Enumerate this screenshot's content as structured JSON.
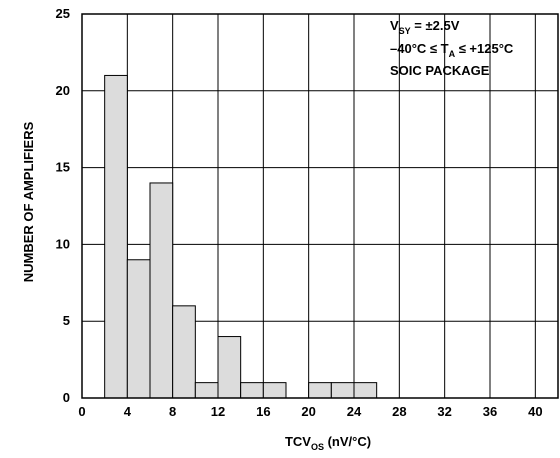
{
  "chart_data": {
    "type": "bar",
    "xlabel": {
      "main": "TCV",
      "sub": "OS",
      "rest": " (nV/°C)"
    },
    "ylabel": "NUMBER OF AMPLIFIERS",
    "xlim": [
      0,
      42
    ],
    "ylim": [
      0,
      25
    ],
    "x_ticks": [
      0,
      4,
      8,
      12,
      16,
      20,
      24,
      28,
      32,
      36,
      40
    ],
    "y_ticks": [
      0,
      5,
      10,
      15,
      20,
      25
    ],
    "bin_width": 2,
    "bins": [
      {
        "x": 2,
        "value": 21
      },
      {
        "x": 4,
        "value": 9
      },
      {
        "x": 6,
        "value": 14
      },
      {
        "x": 8,
        "value": 6
      },
      {
        "x": 10,
        "value": 1
      },
      {
        "x": 12,
        "value": 4
      },
      {
        "x": 14,
        "value": 1
      },
      {
        "x": 16,
        "value": 1
      },
      {
        "x": 20,
        "value": 1
      },
      {
        "x": 22,
        "value": 1
      },
      {
        "x": 24,
        "value": 1
      }
    ],
    "annotations": {
      "line1": {
        "main": "V",
        "sub": "SY",
        "rest": " = ±2.5V"
      },
      "line2": {
        "pre": "–40°C ≤ T",
        "sub": "A",
        "rest": " ≤ +125°C"
      },
      "line3": "SOIC PACKAGE"
    },
    "grid": true,
    "bar_color": "#dcdcdc",
    "grid_color": "#000000"
  }
}
